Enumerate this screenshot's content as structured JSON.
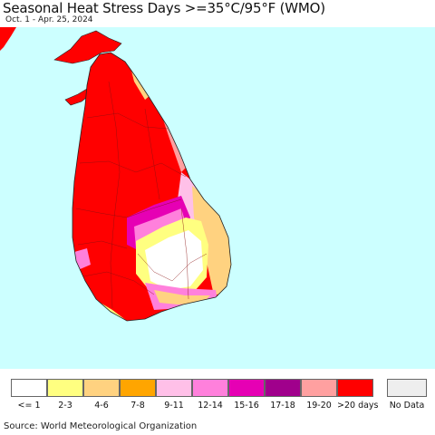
{
  "header": {
    "title": "Seasonal Heat Stress Days >=35°C/95°F (WMO)",
    "subtitle": "Oct. 1 - Apr. 25, 2024"
  },
  "map": {
    "region": "Sri Lanka",
    "ocean_color": "#ccffff"
  },
  "legend": {
    "items": [
      {
        "label": "<= 1",
        "color": "#ffffff"
      },
      {
        "label": "2-3",
        "color": "#ffff80"
      },
      {
        "label": "4-6",
        "color": "#ffd280"
      },
      {
        "label": "7-8",
        "color": "#ffa500"
      },
      {
        "label": "9-11",
        "color": "#ffc0e8"
      },
      {
        "label": "12-14",
        "color": "#ff80dc"
      },
      {
        "label": "15-16",
        "color": "#e600b4"
      },
      {
        "label": "17-18",
        "color": "#a0008c"
      },
      {
        "label": "19-20",
        "color": "#ffa0a0"
      },
      {
        "label": ">20 days",
        "color": "#ff0000"
      }
    ],
    "no_data": {
      "label": "No Data",
      "color": "#eeeeee"
    }
  },
  "footer": {
    "source": "Source: World Meteorological Organization"
  }
}
